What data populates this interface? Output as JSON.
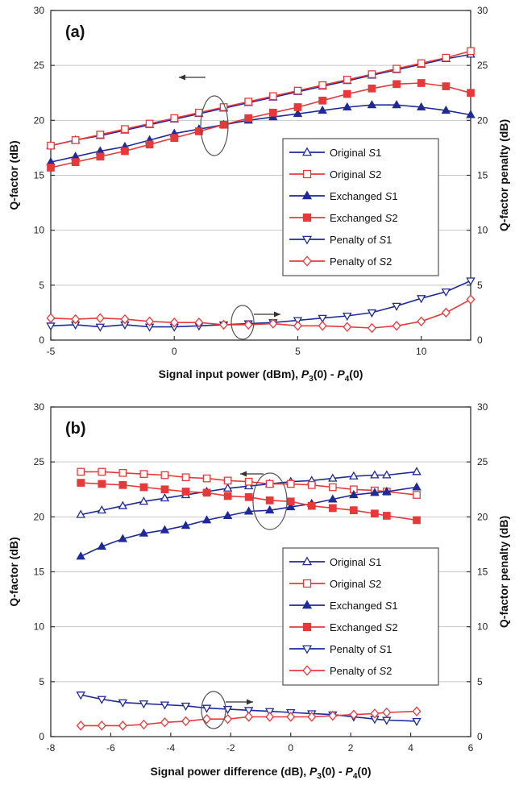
{
  "chart_data": [
    {
      "type": "line",
      "panel_label": "(a)",
      "xlabel_main": "Signal input power (dBm), ",
      "xlabel_sym1": "P",
      "xlabel_sub1": "3",
      "xlabel_mid": "(0) - ",
      "xlabel_sym2": "P",
      "xlabel_sub2": "4",
      "xlabel_end": "(0)",
      "ylabel": "Q-factor (dB)",
      "y2label": "Q-factor penalty (dB)",
      "xlim": [
        -5,
        12
      ],
      "ylim": [
        0,
        30
      ],
      "y2lim": [
        0,
        30
      ],
      "xticks": [
        -5,
        0,
        5,
        10
      ],
      "yticks": [
        0,
        5,
        10,
        15,
        20,
        25,
        30
      ],
      "grid": "horizontal",
      "legend": "center-right",
      "x": [
        -5,
        -4,
        -3,
        -2,
        -1,
        0,
        1,
        2,
        3,
        4,
        5,
        6,
        7,
        8,
        9,
        10,
        11,
        12
      ],
      "series": [
        {
          "name_main": "Original ",
          "name_sym": "S",
          "name_num": "1",
          "color": "#1f2a9a",
          "marker": "triangle-up",
          "filled": false,
          "values": [
            17.7,
            18.2,
            18.6,
            19.1,
            19.6,
            20.1,
            20.6,
            21.1,
            21.6,
            22.1,
            22.6,
            23.1,
            23.6,
            24.1,
            24.6,
            25.1,
            25.6,
            26.0
          ]
        },
        {
          "name_main": "Original ",
          "name_sym": "S",
          "name_num": "2",
          "color": "#e8393a",
          "marker": "square",
          "filled": false,
          "values": [
            17.7,
            18.2,
            18.7,
            19.2,
            19.7,
            20.2,
            20.7,
            21.2,
            21.7,
            22.2,
            22.7,
            23.2,
            23.7,
            24.2,
            24.7,
            25.2,
            25.7,
            26.3
          ]
        },
        {
          "name_main": "Exchanged ",
          "name_sym": "S",
          "name_num": "1",
          "color": "#1f2a9a",
          "marker": "triangle-up",
          "filled": true,
          "values": [
            16.2,
            16.7,
            17.2,
            17.6,
            18.2,
            18.8,
            19.2,
            19.6,
            20.0,
            20.3,
            20.6,
            20.9,
            21.2,
            21.4,
            21.4,
            21.2,
            20.9,
            20.5
          ]
        },
        {
          "name_main": "Exchanged ",
          "name_sym": "S",
          "name_num": "2",
          "color": "#e8393a",
          "marker": "square",
          "filled": true,
          "values": [
            15.7,
            16.2,
            16.7,
            17.2,
            17.8,
            18.4,
            19.0,
            19.6,
            20.2,
            20.7,
            21.2,
            21.8,
            22.4,
            22.9,
            23.3,
            23.4,
            23.1,
            22.5
          ]
        },
        {
          "name_main": "Penalty of ",
          "name_sym": "S",
          "name_num": "1",
          "color": "#1f2a9a",
          "marker": "triangle-down",
          "filled": false,
          "values": [
            1.3,
            1.4,
            1.2,
            1.4,
            1.2,
            1.2,
            1.3,
            1.4,
            1.5,
            1.6,
            1.8,
            2.0,
            2.2,
            2.5,
            3.1,
            3.8,
            4.4,
            5.4
          ]
        },
        {
          "name_main": "Penalty of ",
          "name_sym": "S",
          "name_num": "2",
          "color": "#e8393a",
          "marker": "diamond",
          "filled": false,
          "values": [
            2.0,
            1.9,
            2.0,
            1.9,
            1.7,
            1.6,
            1.6,
            1.4,
            1.4,
            1.5,
            1.3,
            1.3,
            1.2,
            1.1,
            1.3,
            1.7,
            2.5,
            3.7
          ]
        }
      ]
    },
    {
      "type": "line",
      "panel_label": "(b)",
      "xlabel_main": "Signal power difference (dB), ",
      "xlabel_sym1": "P",
      "xlabel_sub1": "3",
      "xlabel_mid": "(0) - ",
      "xlabel_sym2": "P",
      "xlabel_sub2": "4",
      "xlabel_end": "(0)",
      "ylabel": "Q-factor (dB)",
      "y2label": "Q-factor penalty (dB)",
      "xlim": [
        -8,
        6
      ],
      "ylim": [
        0,
        30
      ],
      "y2lim": [
        0,
        30
      ],
      "xticks": [
        -8,
        -6,
        -4,
        -2,
        0,
        2,
        4,
        6
      ],
      "yticks": [
        0,
        5,
        10,
        15,
        20,
        25,
        30
      ],
      "grid": "horizontal",
      "legend": "lower-right",
      "x": [
        -7,
        -6.3,
        -5.6,
        -4.9,
        -4.2,
        -3.5,
        -2.8,
        -2.1,
        -1.4,
        -0.7,
        0,
        0.7,
        1.4,
        2.1,
        2.8,
        3.2,
        4.2
      ],
      "series": [
        {
          "name_main": "Original ",
          "name_sym": "S",
          "name_num": "1",
          "color": "#1f2a9a",
          "marker": "triangle-up",
          "filled": false,
          "values": [
            20.2,
            20.6,
            21.0,
            21.4,
            21.7,
            22.0,
            22.3,
            22.6,
            22.8,
            23.0,
            23.2,
            23.3,
            23.5,
            23.7,
            23.8,
            23.8,
            24.1
          ]
        },
        {
          "name_main": "Original ",
          "name_sym": "S",
          "name_num": "2",
          "color": "#e8393a",
          "marker": "square",
          "filled": false,
          "values": [
            24.1,
            24.1,
            24.0,
            23.9,
            23.8,
            23.6,
            23.5,
            23.3,
            23.2,
            23.0,
            23.0,
            22.9,
            22.7,
            22.5,
            22.4,
            22.3,
            22.0
          ]
        },
        {
          "name_main": "Exchanged ",
          "name_sym": "S",
          "name_num": "1",
          "color": "#1f2a9a",
          "marker": "triangle-up",
          "filled": true,
          "values": [
            16.4,
            17.3,
            18.0,
            18.5,
            18.8,
            19.2,
            19.7,
            20.1,
            20.5,
            20.6,
            20.9,
            21.2,
            21.6,
            22.0,
            22.2,
            22.3,
            22.7
          ]
        },
        {
          "name_main": "Exchanged ",
          "name_sym": "S",
          "name_num": "2",
          "color": "#e8393a",
          "marker": "square",
          "filled": true,
          "values": [
            23.1,
            23.0,
            22.9,
            22.7,
            22.5,
            22.3,
            22.2,
            21.9,
            21.8,
            21.5,
            21.4,
            21.0,
            20.8,
            20.6,
            20.3,
            20.1,
            19.7
          ]
        },
        {
          "name_main": "Penalty of ",
          "name_sym": "S",
          "name_num": "1",
          "color": "#1f2a9a",
          "marker": "triangle-down",
          "filled": false,
          "values": [
            3.8,
            3.4,
            3.1,
            3.0,
            2.9,
            2.8,
            2.6,
            2.5,
            2.4,
            2.3,
            2.2,
            2.1,
            2.0,
            1.8,
            1.6,
            1.5,
            1.4
          ]
        },
        {
          "name_main": "Penalty of ",
          "name_sym": "S",
          "name_num": "2",
          "color": "#e8393a",
          "marker": "diamond",
          "filled": false,
          "values": [
            1.0,
            1.0,
            1.0,
            1.1,
            1.3,
            1.4,
            1.6,
            1.6,
            1.8,
            1.8,
            1.8,
            1.8,
            1.9,
            2.0,
            2.1,
            2.2,
            2.3
          ]
        }
      ]
    }
  ]
}
